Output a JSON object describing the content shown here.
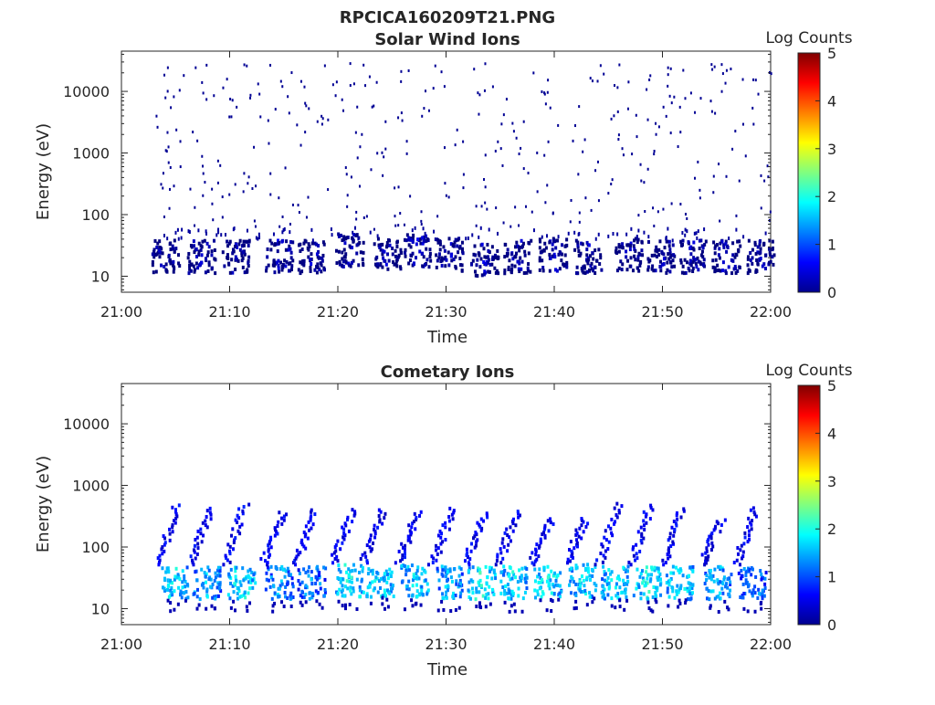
{
  "page_title": "RPCICA160209T21.PNG",
  "colorbar": {
    "label": "Log Counts",
    "ticks": [
      "0",
      "1",
      "2",
      "3",
      "4",
      "5"
    ],
    "range": [
      0,
      5
    ],
    "colormap": "jet"
  },
  "chart_data": [
    {
      "type": "heatmap",
      "title": "Solar Wind Ions",
      "xlabel": "Time",
      "ylabel": "Energy (eV)",
      "x_ticks": [
        "21:00",
        "21:10",
        "21:20",
        "21:30",
        "21:40",
        "21:50",
        "22:00"
      ],
      "x_range_minutes": [
        0,
        60
      ],
      "y_scale": "log",
      "y_ticks": [
        "10",
        "100",
        "1000",
        "10000"
      ],
      "y_range_ev": [
        5.5,
        45000
      ],
      "z_label": "Log Counts",
      "z_range": [
        0,
        5
      ],
      "clusters": [
        {
          "x": 4.0,
          "y": 22,
          "z": 0.2
        },
        {
          "x": 7.3,
          "y": 22,
          "z": 0.2
        },
        {
          "x": 10.5,
          "y": 22,
          "z": 0.2
        },
        {
          "x": 14.5,
          "y": 22,
          "z": 0.3
        },
        {
          "x": 17.5,
          "y": 22,
          "z": 0.2
        },
        {
          "x": 21.0,
          "y": 28,
          "z": 0.2
        },
        {
          "x": 24.5,
          "y": 24,
          "z": 0.2
        },
        {
          "x": 27.3,
          "y": 28,
          "z": 0.3
        },
        {
          "x": 30.2,
          "y": 24,
          "z": 0.2
        },
        {
          "x": 33.5,
          "y": 20,
          "z": 0.3
        },
        {
          "x": 36.5,
          "y": 22,
          "z": 0.2
        },
        {
          "x": 39.8,
          "y": 24,
          "z": 0.2
        },
        {
          "x": 43.0,
          "y": 22,
          "z": 0.2
        },
        {
          "x": 46.8,
          "y": 24,
          "z": 0.2
        },
        {
          "x": 49.8,
          "y": 22,
          "z": 0.2
        },
        {
          "x": 52.8,
          "y": 22,
          "z": 0.2
        },
        {
          "x": 55.8,
          "y": 22,
          "z": 0.2
        },
        {
          "x": 59.0,
          "y": 22,
          "z": 0.2
        }
      ],
      "scatter_range_ev": [
        60,
        30000
      ],
      "scatter_z": 0.1
    },
    {
      "type": "heatmap",
      "title": "Cometary Ions",
      "xlabel": "Time",
      "ylabel": "Energy (eV)",
      "x_ticks": [
        "21:00",
        "21:10",
        "21:20",
        "21:30",
        "21:40",
        "21:50",
        "22:00"
      ],
      "x_range_minutes": [
        0,
        60
      ],
      "y_scale": "log",
      "y_ticks": [
        "10",
        "100",
        "1000",
        "10000"
      ],
      "y_range_ev": [
        5.5,
        45000
      ],
      "z_label": "Log Counts",
      "z_range": [
        0,
        5
      ],
      "clusters": [
        {
          "x": 4.8,
          "y": 28,
          "z": 1.8
        },
        {
          "x": 7.8,
          "y": 28,
          "z": 1.6
        },
        {
          "x": 11.0,
          "y": 28,
          "z": 1.9
        },
        {
          "x": 14.5,
          "y": 28,
          "z": 1.5
        },
        {
          "x": 17.5,
          "y": 28,
          "z": 1.4
        },
        {
          "x": 21.0,
          "y": 30,
          "z": 1.9
        },
        {
          "x": 23.8,
          "y": 30,
          "z": 1.8
        },
        {
          "x": 27.0,
          "y": 30,
          "z": 1.8
        },
        {
          "x": 30.2,
          "y": 28,
          "z": 1.6
        },
        {
          "x": 33.2,
          "y": 28,
          "z": 2.0
        },
        {
          "x": 36.2,
          "y": 28,
          "z": 1.8
        },
        {
          "x": 39.3,
          "y": 28,
          "z": 1.9
        },
        {
          "x": 42.5,
          "y": 30,
          "z": 1.8
        },
        {
          "x": 45.5,
          "y": 28,
          "z": 1.8
        },
        {
          "x": 48.5,
          "y": 28,
          "z": 1.9
        },
        {
          "x": 51.5,
          "y": 28,
          "z": 1.8
        },
        {
          "x": 55.0,
          "y": 28,
          "z": 1.6
        },
        {
          "x": 58.2,
          "y": 28,
          "z": 1.4
        }
      ],
      "streak_top_ev": [
        300,
        600
      ]
    }
  ]
}
